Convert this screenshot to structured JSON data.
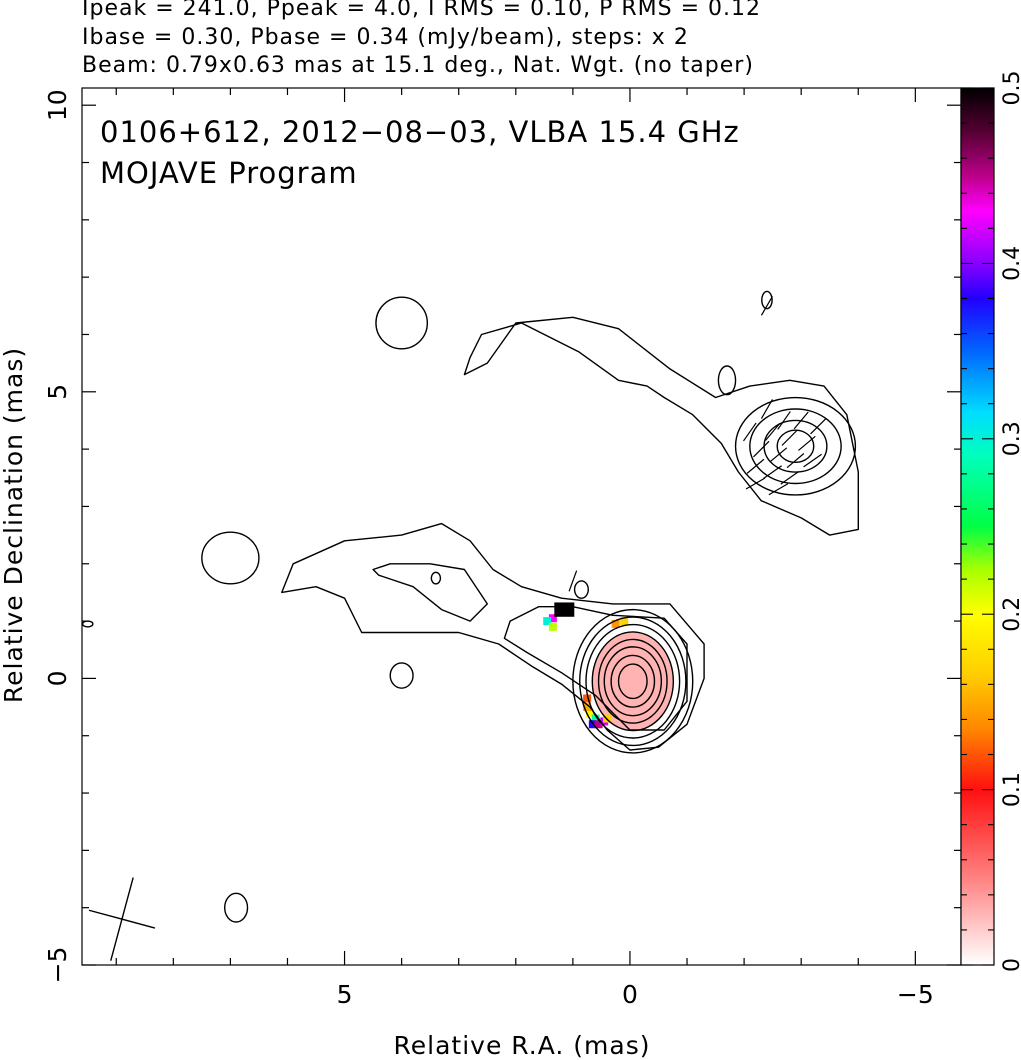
{
  "header": {
    "line1": "Ipeak = 241.0, Ppeak = 4.0, I RMS = 0.10, P RMS = 0.12",
    "line2": "Ibase = 0.30, Pbase = 0.34 (mJy/beam), steps: x 2",
    "line3": "Beam: 0.79x0.63 mas at 15.1 deg., Nat. Wgt. (no taper)"
  },
  "chart_data": {
    "type": "heatmap",
    "title": "0106+612, 2012−08−03, VLBA 15.4 GHz",
    "subtitle": "MOJAVE Program",
    "xlabel": "Relative R.A. (mas)",
    "ylabel": "Relative Declination (mas)",
    "xlim": [
      9.6,
      -5.8
    ],
    "ylim": [
      -5,
      10.3
    ],
    "x_ticks": [
      5,
      0,
      -5
    ],
    "y_ticks": [
      -5,
      0,
      5,
      10
    ],
    "x_tick_labels": [
      "5",
      "0",
      "−5"
    ],
    "y_tick_labels": [
      "−5",
      "0",
      "5",
      "10"
    ],
    "colorbar": {
      "range": [
        0,
        0.5
      ],
      "ticks": [
        0,
        0.1,
        0.2,
        0.3,
        0.4,
        0.5
      ],
      "tick_labels": [
        "0",
        "0.1",
        "0.2",
        "0.3",
        "0.4",
        "0.5"
      ]
    },
    "core_contours": [
      {
        "cx": -0.05,
        "cy": -0.05,
        "rx": 1.05,
        "ry": 1.25
      },
      {
        "cx": -0.05,
        "cy": -0.05,
        "rx": 0.93,
        "ry": 1.12
      },
      {
        "cx": -0.05,
        "cy": -0.05,
        "rx": 0.82,
        "ry": 0.99
      },
      {
        "cx": -0.05,
        "cy": -0.05,
        "rx": 0.71,
        "ry": 0.86
      },
      {
        "cx": -0.05,
        "cy": -0.05,
        "rx": 0.6,
        "ry": 0.73
      },
      {
        "cx": -0.05,
        "cy": -0.05,
        "rx": 0.5,
        "ry": 0.6
      },
      {
        "cx": -0.05,
        "cy": -0.05,
        "rx": 0.38,
        "ry": 0.45
      },
      {
        "cx": -0.05,
        "cy": -0.05,
        "rx": 0.25,
        "ry": 0.3
      }
    ],
    "knot_contours": [
      {
        "cx": -2.9,
        "cy": 4.05,
        "rx": 1.05,
        "ry": 0.85
      },
      {
        "cx": -2.9,
        "cy": 4.05,
        "rx": 0.8,
        "ry": 0.65
      },
      {
        "cx": -2.9,
        "cy": 4.05,
        "rx": 0.55,
        "ry": 0.45
      },
      {
        "cx": -2.9,
        "cy": 4.05,
        "rx": 0.32,
        "ry": 0.28
      }
    ],
    "outer_contours": [
      [
        [
          -4.0,
          2.6
        ],
        [
          -4.0,
          3.6
        ],
        [
          -3.8,
          4.6
        ],
        [
          -3.4,
          5.1
        ],
        [
          -2.8,
          5.2
        ],
        [
          -2.1,
          5.1
        ],
        [
          -1.5,
          4.9
        ],
        [
          -0.7,
          5.4
        ],
        [
          0.2,
          6.1
        ],
        [
          1.0,
          6.3
        ],
        [
          2.0,
          6.2
        ],
        [
          2.5,
          5.5
        ],
        [
          2.9,
          5.3
        ],
        [
          2.8,
          5.6
        ],
        [
          2.6,
          6.0
        ],
        [
          1.9,
          6.2
        ],
        [
          0.9,
          5.7
        ],
        [
          0.2,
          5.2
        ],
        [
          -0.3,
          5.1
        ],
        [
          -0.6,
          4.9
        ],
        [
          -1.1,
          4.6
        ],
        [
          -1.6,
          4.1
        ],
        [
          -1.9,
          3.6
        ],
        [
          -2.3,
          3.1
        ],
        [
          -3.0,
          2.8
        ],
        [
          -3.5,
          2.5
        ],
        [
          -4.0,
          2.6
        ]
      ],
      [
        [
          -1.3,
          0.6
        ],
        [
          -0.7,
          1.3
        ],
        [
          0.3,
          1.3
        ],
        [
          1.2,
          1.4
        ],
        [
          1.9,
          1.6
        ],
        [
          2.4,
          1.9
        ],
        [
          2.8,
          2.4
        ],
        [
          3.3,
          2.7
        ],
        [
          4.0,
          2.5
        ],
        [
          5.0,
          2.4
        ],
        [
          5.9,
          2.0
        ],
        [
          6.1,
          1.5
        ],
        [
          5.5,
          1.6
        ],
        [
          5.0,
          1.4
        ],
        [
          4.7,
          0.8
        ],
        [
          4.0,
          0.8
        ],
        [
          3.0,
          0.8
        ],
        [
          2.3,
          0.6
        ],
        [
          1.7,
          0.2
        ],
        [
          1.2,
          -0.1
        ],
        [
          0.7,
          -0.5
        ],
        [
          0.4,
          -0.9
        ],
        [
          0.0,
          -1.25
        ],
        [
          -0.5,
          -1.2
        ],
        [
          -1.0,
          -0.8
        ],
        [
          -1.3,
          0.0
        ],
        [
          -1.3,
          0.6
        ]
      ],
      [
        [
          -1.0,
          0.6
        ],
        [
          -0.6,
          1.05
        ],
        [
          0.3,
          1.1
        ],
        [
          1.0,
          1.25
        ],
        [
          1.6,
          1.25
        ],
        [
          2.1,
          1.0
        ],
        [
          2.2,
          0.7
        ],
        [
          1.8,
          0.45
        ],
        [
          1.2,
          0.1
        ],
        [
          0.6,
          -0.3
        ],
        [
          0.0,
          -0.9
        ],
        [
          -0.6,
          -0.9
        ],
        [
          -1.0,
          -0.4
        ],
        [
          -1.0,
          0.6
        ]
      ],
      [
        [
          2.5,
          1.3
        ],
        [
          2.9,
          1.9
        ],
        [
          3.5,
          2.0
        ],
        [
          4.2,
          2.0
        ],
        [
          4.5,
          1.9
        ],
        [
          4.4,
          1.8
        ],
        [
          3.8,
          1.6
        ],
        [
          3.3,
          1.2
        ],
        [
          2.8,
          1.0
        ],
        [
          2.5,
          1.3
        ]
      ]
    ],
    "islands": [
      {
        "cx": 7.0,
        "cy": 2.1,
        "rx": 0.5,
        "ry": 0.45
      },
      {
        "cx": 4.0,
        "cy": 6.2,
        "rx": 0.45,
        "ry": 0.45
      },
      {
        "cx": 4.0,
        "cy": 0.05,
        "rx": 0.2,
        "ry": 0.22
      },
      {
        "cx": 6.9,
        "cy": -4.0,
        "rx": 0.2,
        "ry": 0.25
      },
      {
        "cx": 0.85,
        "cy": 1.55,
        "rx": 0.12,
        "ry": 0.15
      },
      {
        "cx": -1.7,
        "cy": 5.2,
        "rx": 0.15,
        "ry": 0.25
      },
      {
        "cx": -2.4,
        "cy": 6.6,
        "rx": 0.09,
        "ry": 0.15
      },
      {
        "cx": 3.4,
        "cy": 1.75,
        "rx": 0.08,
        "ry": 0.1
      },
      {
        "cx": 9.5,
        "cy": 0.95,
        "rx": 0.09,
        "ry": 0.05
      }
    ],
    "polarized_core": {
      "cx": -0.05,
      "cy": -0.05,
      "rx": 0.7,
      "ry": 0.85,
      "fractional_pol": 0.03
    },
    "pol_edge": [
      {
        "x": 0.7,
        "y": -0.6,
        "p": 0.2
      },
      {
        "x": 0.6,
        "y": -0.7,
        "p": 0.28
      },
      {
        "x": 0.75,
        "y": -0.5,
        "p": 0.15
      },
      {
        "x": 0.65,
        "y": -0.8,
        "p": 0.38
      },
      {
        "x": 0.55,
        "y": -0.8,
        "p": 0.45
      },
      {
        "x": 0.45,
        "y": -0.75,
        "p": 0.42
      },
      {
        "x": 0.4,
        "y": -0.7,
        "p": 0.17
      },
      {
        "x": 0.75,
        "y": -0.35,
        "p": 0.12
      },
      {
        "x": 0.25,
        "y": 0.95,
        "p": 0.14
      },
      {
        "x": 0.1,
        "y": 1.0,
        "p": 0.17
      },
      {
        "x": 1.35,
        "y": 1.05,
        "p": 0.43
      },
      {
        "x": 1.45,
        "y": 1.0,
        "p": 0.3
      },
      {
        "x": 1.35,
        "y": 0.9,
        "p": 0.22
      }
    ],
    "black_blob": {
      "x": 1.15,
      "y": 1.2,
      "w": 0.35,
      "h": 0.25
    },
    "beam": {
      "cx": 8.9,
      "cy": -4.2,
      "major": 0.79,
      "minor": 0.63,
      "pa_deg": 15.1
    },
    "evpa_sticks": [
      {
        "x": -2.4,
        "y": 4.7,
        "a": 60
      },
      {
        "x": -2.7,
        "y": 4.5,
        "a": 55
      },
      {
        "x": -3.0,
        "y": 4.5,
        "a": 50
      },
      {
        "x": -2.5,
        "y": 4.3,
        "a": 50
      },
      {
        "x": -2.8,
        "y": 4.2,
        "a": 45
      },
      {
        "x": -3.1,
        "y": 4.1,
        "a": 40
      },
      {
        "x": -2.3,
        "y": 4.0,
        "a": 45
      },
      {
        "x": -2.6,
        "y": 3.9,
        "a": 40
      },
      {
        "x": -2.9,
        "y": 3.8,
        "a": 40
      },
      {
        "x": -3.2,
        "y": 3.8,
        "a": 35
      },
      {
        "x": -2.2,
        "y": 3.7,
        "a": 40
      },
      {
        "x": -2.5,
        "y": 3.6,
        "a": 35
      },
      {
        "x": -2.8,
        "y": 3.5,
        "a": 35
      },
      {
        "x": -2.1,
        "y": 4.3,
        "a": 55
      },
      {
        "x": -3.3,
        "y": 4.4,
        "a": 45
      },
      {
        "x": -2.2,
        "y": 3.4,
        "a": 30
      },
      {
        "x": -2.6,
        "y": 3.3,
        "a": 30
      },
      {
        "x": -2.4,
        "y": 6.5,
        "a": 60
      },
      {
        "x": 1.0,
        "y": 1.7,
        "a": 70
      }
    ]
  }
}
